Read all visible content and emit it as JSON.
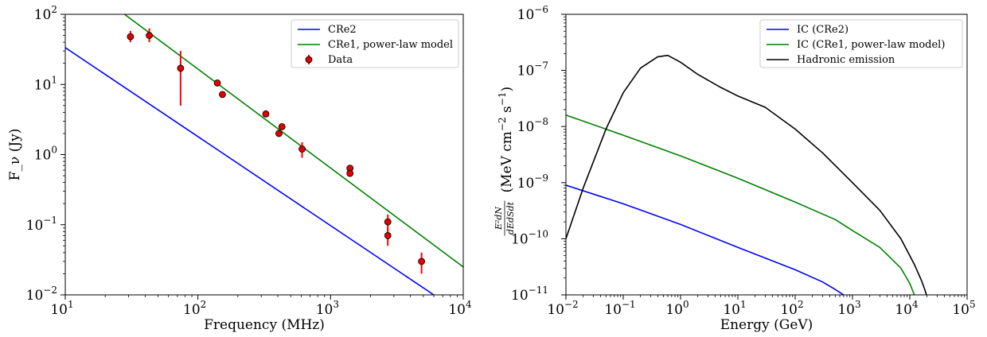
{
  "chart_data": [
    {
      "type": "line",
      "xlabel": "Frequency (MHz)",
      "ylabel": "F_ν (Jy)",
      "xscale": "log",
      "yscale": "log",
      "xlim": [
        10,
        10000
      ],
      "ylim": [
        0.01,
        100
      ],
      "xticks": [
        {
          "v": 10,
          "m": "10",
          "e": "1"
        },
        {
          "v": 100,
          "m": "10",
          "e": "2"
        },
        {
          "v": 1000,
          "m": "10",
          "e": "3"
        },
        {
          "v": 10000,
          "m": "10",
          "e": "4"
        }
      ],
      "yticks": [
        {
          "v": 100,
          "label": "10"
        },
        {
          "v": 10,
          "label": "10"
        },
        {
          "v": 1,
          "label": "10"
        },
        {
          "v": 0.1,
          "label": "10"
        },
        {
          "v": 0.01,
          "label": "10"
        }
      ],
      "ytick_sup": [
        "2",
        "1",
        "0",
        "−1",
        "−2"
      ],
      "legend_position": "upper right",
      "series": [
        {
          "name": "CRe2",
          "color": "#0000ff",
          "x": [
            10,
            6000
          ],
          "y": [
            33.5,
            0.01
          ]
        },
        {
          "name": "CRe1, power-law model",
          "color": "#008000",
          "x": [
            28,
            10000
          ],
          "y": [
            100,
            0.025
          ]
        }
      ],
      "points": {
        "name": "Data",
        "color": "#ff0000",
        "x": [
          31,
          43,
          74,
          140,
          153,
          325,
          408,
          430,
          610,
          1400,
          1400,
          2700,
          2700,
          4850
        ],
        "y": [
          48,
          50,
          17,
          10.5,
          7.2,
          3.8,
          2.0,
          2.5,
          1.2,
          0.64,
          0.54,
          0.11,
          0.07,
          0.03
        ],
        "ylo": [
          40,
          40,
          5,
          10.5,
          7.2,
          3.8,
          2.0,
          2.5,
          0.9,
          0.64,
          0.54,
          0.08,
          0.05,
          0.02
        ],
        "yhi": [
          58,
          63,
          30,
          10.5,
          7.2,
          3.8,
          2.0,
          2.5,
          1.5,
          0.64,
          0.54,
          0.14,
          0.09,
          0.04
        ]
      }
    },
    {
      "type": "line",
      "xlabel": "Energy (GeV)",
      "ylabel_unit": "(MeV cm",
      "ylabel_unit_sup1": "−2",
      "ylabel_unit_mid": " s",
      "ylabel_unit_sup2": "−1",
      "ylabel_unit_end": ")",
      "ylabel_num": "E²dN",
      "ylabel_den": "dEdSdt",
      "xscale": "log",
      "yscale": "log",
      "xlim": [
        0.01,
        100000
      ],
      "ylim": [
        1e-11,
        1e-06
      ],
      "xtick_sup": [
        "−2",
        "−1",
        "0",
        "1",
        "2",
        "3",
        "4",
        "5"
      ],
      "xtick_vals": [
        0.01,
        0.1,
        1,
        10,
        100,
        1000,
        10000,
        100000
      ],
      "ytick_sup": [
        "−6",
        "−7",
        "−8",
        "−9",
        "−10",
        "−11"
      ],
      "ytick_vals": [
        1e-06,
        1e-07,
        1e-08,
        1e-09,
        1e-10,
        1e-11
      ],
      "tick_base": "10",
      "legend_position": "upper right",
      "series": [
        {
          "name": "IC (CRe2)",
          "color": "#0000ff",
          "x": [
            0.01,
            0.1,
            1,
            10,
            100,
            300,
            500,
            700
          ],
          "y": [
            9e-10,
            4.2e-10,
            1.8e-10,
            7e-11,
            2.8e-11,
            1.7e-11,
            1.25e-11,
            1e-11
          ]
        },
        {
          "name": "IC (CRe1, power-law model)",
          "color": "#008000",
          "x": [
            0.01,
            0.1,
            1,
            10,
            100,
            500,
            1000,
            3000,
            7000,
            10000,
            12000
          ],
          "y": [
            1.6e-08,
            7e-09,
            3e-09,
            1.2e-09,
            4.5e-10,
            2.2e-10,
            1.4e-10,
            7e-11,
            3e-11,
            1.6e-11,
            1e-11
          ]
        },
        {
          "name": "Hadronic emission",
          "color": "#000000",
          "x": [
            0.01,
            0.02,
            0.05,
            0.1,
            0.2,
            0.4,
            0.6,
            1,
            2,
            5,
            10,
            30,
            100,
            300,
            1000,
            3000,
            7000,
            12000,
            16000,
            18000,
            19500
          ],
          "y": [
            1e-10,
            8e-10,
            9e-09,
            4e-08,
            1.1e-07,
            1.75e-07,
            1.85e-07,
            1.4e-07,
            8.5e-08,
            5e-08,
            3.5e-08,
            2.2e-08,
            9e-09,
            3.4e-09,
            1e-09,
            3.2e-10,
            1e-10,
            3.5e-11,
            1.8e-11,
            1.3e-11,
            1e-11
          ]
        }
      ]
    }
  ]
}
